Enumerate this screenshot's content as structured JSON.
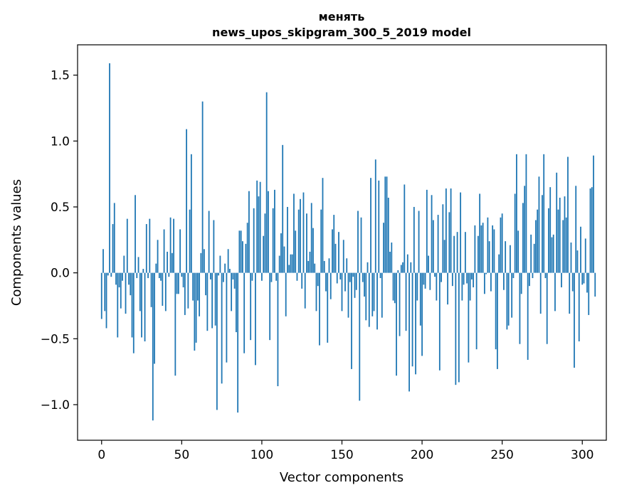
{
  "chart_data": {
    "type": "bar",
    "title_line1": "менять",
    "title_line2": "news_upos_skipgram_300_5_2019 model",
    "xlabel": "Vector components",
    "ylabel": "Components values",
    "xlim": [
      -15,
      315
    ],
    "ylim": [
      -1.27,
      1.73
    ],
    "xticks": [
      0,
      50,
      100,
      150,
      200,
      250,
      300
    ],
    "xtick_labels": [
      "0",
      "50",
      "100",
      "150",
      "200",
      "250",
      "300"
    ],
    "yticks": [
      -1.0,
      -0.5,
      0.0,
      0.5,
      1.0,
      1.5
    ],
    "ytick_labels": [
      "−1.0",
      "−0.5",
      "0.0",
      "0.5",
      "1.0",
      "1.5"
    ],
    "bar_color": "#1f77b4",
    "x_start": 0,
    "values": [
      -0.35,
      0.18,
      -0.29,
      -0.42,
      -0.02,
      1.59,
      -0.03,
      0.37,
      0.53,
      -0.09,
      -0.49,
      -0.11,
      -0.27,
      -0.06,
      0.13,
      -0.31,
      0.41,
      -0.09,
      -0.17,
      -0.49,
      -0.61,
      0.59,
      -0.04,
      0.12,
      -0.29,
      -0.49,
      0.03,
      -0.52,
      0.37,
      -0.04,
      0.41,
      -0.26,
      -1.12,
      -0.69,
      0.07,
      0.25,
      -0.04,
      -0.06,
      -0.25,
      0.33,
      -0.29,
      0.16,
      -0.03,
      0.42,
      0.15,
      0.41,
      -0.78,
      -0.16,
      -0.16,
      0.33,
      -0.03,
      -0.11,
      -0.32,
      1.09,
      -0.27,
      0.48,
      0.9,
      -0.21,
      -0.59,
      -0.53,
      -0.21,
      -0.33,
      0.15,
      1.3,
      0.18,
      -0.17,
      -0.44,
      0.47,
      -0.05,
      -0.42,
      0.4,
      -0.4,
      -1.04,
      -0.02,
      0.13,
      -0.84,
      -0.07,
      0.07,
      -0.68,
      0.18,
      0.03,
      -0.29,
      -0.05,
      -0.12,
      -0.45,
      -1.06,
      0.32,
      0.32,
      0.24,
      -0.61,
      0.22,
      0.38,
      0.62,
      -0.51,
      -0.06,
      0.49,
      -0.7,
      0.7,
      0.58,
      0.69,
      -0.06,
      0.28,
      0.45,
      1.37,
      0.62,
      -0.51,
      -0.07,
      0.49,
      0.63,
      -0.06,
      -0.86,
      0.13,
      0.3,
      0.97,
      0.2,
      -0.33,
      0.5,
      0.06,
      0.14,
      0.14,
      0.6,
      0.32,
      -0.06,
      0.48,
      0.56,
      -0.12,
      0.61,
      -0.27,
      0.45,
      0.09,
      0.16,
      0.53,
      0.34,
      0.07,
      -0.29,
      -0.1,
      -0.55,
      0.48,
      0.72,
      0.09,
      -0.14,
      -0.53,
      0.11,
      -0.2,
      0.33,
      0.44,
      0.22,
      -0.08,
      0.31,
      -0.05,
      -0.29,
      0.25,
      -0.14,
      0.11,
      -0.34,
      -0.07,
      -0.73,
      -0.03,
      -0.19,
      -0.13,
      0.47,
      -0.97,
      0.42,
      -0.07,
      -0.18,
      -0.36,
      0.08,
      -0.41,
      0.72,
      -0.33,
      -0.29,
      0.86,
      -0.43,
      0.7,
      -0.04,
      -0.34,
      0.38,
      0.73,
      0.73,
      0.57,
      0.16,
      0.23,
      -0.21,
      -0.23,
      -0.78,
      0.02,
      -0.48,
      0.06,
      0.08,
      0.67,
      -0.44,
      0.14,
      -0.9,
      0.08,
      -0.71,
      0.5,
      -0.77,
      -0.21,
      0.47,
      -0.4,
      -0.63,
      -0.09,
      -0.12,
      0.63,
      0.13,
      -0.13,
      0.59,
      0.4,
      -0.03,
      -0.21,
      0.44,
      -0.74,
      -0.07,
      0.52,
      0.25,
      0.64,
      -0.24,
      0.46,
      0.64,
      -0.1,
      0.28,
      -0.85,
      0.31,
      -0.83,
      0.61,
      -0.21,
      -0.09,
      0.31,
      -0.08,
      -0.68,
      -0.21,
      -0.05,
      -0.11,
      0.36,
      -0.58,
      0.28,
      0.6,
      0.36,
      0.38,
      -0.16,
      -0.01,
      0.42,
      0.24,
      -0.14,
      0.36,
      0.33,
      -0.58,
      -0.73,
      0.14,
      0.42,
      0.45,
      -0.13,
      0.24,
      -0.43,
      -0.4,
      0.21,
      -0.34,
      -0.04,
      0.6,
      0.9,
      0.32,
      -0.54,
      -0.16,
      0.53,
      0.66,
      0.9,
      -0.66,
      -0.1,
      0.29,
      -0.04,
      0.22,
      0.4,
      0.48,
      0.73,
      -0.31,
      0.59,
      0.9,
      -0.04,
      -0.54,
      0.49,
      0.65,
      0.27,
      0.29,
      -0.29,
      0.76,
      0.48,
      0.57,
      -0.11,
      0.4,
      0.58,
      0.42,
      0.88,
      -0.31,
      0.23,
      -0.14,
      -0.72,
      0.66,
      0.17,
      -0.52,
      0.35,
      -0.09,
      -0.08,
      0.26,
      -0.15,
      -0.32,
      0.64,
      0.65,
      0.89,
      -0.18
    ],
    "grid": false,
    "legend": "none"
  }
}
